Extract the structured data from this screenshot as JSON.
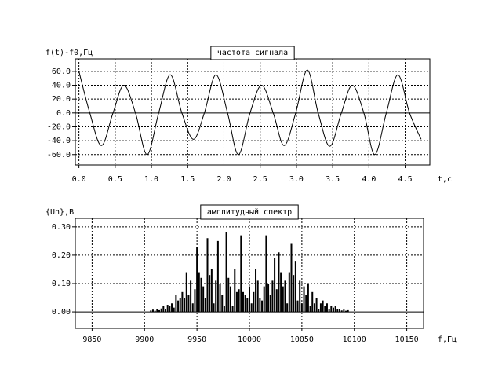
{
  "chart_data": [
    {
      "type": "line",
      "title": "частота сигнала",
      "ylabel": "f(t)-f0,Гц",
      "xlabel": "t,c",
      "x": [
        0.0,
        0.15,
        0.31,
        0.47,
        0.62,
        0.78,
        0.94,
        1.1,
        1.26,
        1.42,
        1.58,
        1.73,
        1.89,
        2.05,
        2.2,
        2.36,
        2.52,
        2.68,
        2.83,
        2.99,
        3.15,
        3.3,
        3.46,
        3.62,
        3.77,
        3.93,
        4.08,
        4.24,
        4.4,
        4.56,
        4.72
      ],
      "values": [
        60,
        0,
        -47,
        0,
        40,
        0,
        -60,
        0,
        55,
        0,
        -38,
        0,
        55,
        0,
        -60,
        0,
        40,
        0,
        -47,
        0,
        62,
        0,
        -48,
        0,
        40,
        0,
        -60,
        0,
        55,
        0,
        -38
      ],
      "color": "#000000",
      "xlim": [
        -0.05,
        4.84
      ],
      "ylim": [
        -75,
        78
      ],
      "xticks": [
        {
          "value": 0,
          "label": "0.0"
        },
        {
          "value": 0.5,
          "label": "0.5"
        },
        {
          "value": 1,
          "label": "1.0"
        },
        {
          "value": 1.5,
          "label": "1.5"
        },
        {
          "value": 2,
          "label": "2.0"
        },
        {
          "value": 2.5,
          "label": "2.5"
        },
        {
          "value": 3,
          "label": "3.0"
        },
        {
          "value": 3.5,
          "label": "3.5"
        },
        {
          "value": 4,
          "label": "4.0"
        },
        {
          "value": 4.5,
          "label": "4.5"
        }
      ],
      "yticks": [
        {
          "value": 60,
          "label": "60.0"
        },
        {
          "value": 40,
          "label": "40.0"
        },
        {
          "value": 20,
          "label": "20.0"
        },
        {
          "value": 0,
          "label": "0.0"
        },
        {
          "value": -20,
          "label": "-20.0"
        },
        {
          "value": -40,
          "label": "-40.0"
        },
        {
          "value": -60,
          "label": "-60.0"
        }
      ],
      "grid": true
    },
    {
      "type": "bar",
      "title": "амплитудный спектр",
      "ylabel": "{Un},B",
      "xlabel": "f,Гц",
      "x": [
        9906,
        9908,
        9910,
        9912,
        9914,
        9916,
        9918,
        9920,
        9922,
        9924,
        9926,
        9928,
        9930,
        9932,
        9934,
        9936,
        9938,
        9940,
        9942,
        9944,
        9946,
        9948,
        9950,
        9952,
        9954,
        9956,
        9958,
        9960,
        9962,
        9964,
        9966,
        9968,
        9970,
        9972,
        9974,
        9976,
        9978,
        9980,
        9982,
        9984,
        9986,
        9988,
        9990,
        9992,
        9994,
        9996,
        9998,
        10000,
        10002,
        10004,
        10006,
        10008,
        10010,
        10012,
        10014,
        10016,
        10018,
        10020,
        10022,
        10024,
        10026,
        10028,
        10030,
        10032,
        10034,
        10036,
        10038,
        10040,
        10042,
        10044,
        10046,
        10048,
        10050,
        10052,
        10054,
        10056,
        10058,
        10060,
        10062,
        10064,
        10066,
        10068,
        10070,
        10072,
        10074,
        10076,
        10078,
        10080,
        10082,
        10084,
        10086,
        10088,
        10090,
        10092,
        10094
      ],
      "values": [
        0.005,
        0.008,
        0.004,
        0.01,
        0.006,
        0.012,
        0.02,
        0.01,
        0.025,
        0.02,
        0.03,
        0.015,
        0.06,
        0.04,
        0.05,
        0.07,
        0.05,
        0.14,
        0.06,
        0.11,
        0.03,
        0.08,
        0.23,
        0.14,
        0.12,
        0.09,
        0.05,
        0.26,
        0.13,
        0.15,
        0.03,
        0.11,
        0.25,
        0.1,
        0.06,
        0.02,
        0.28,
        0.12,
        0.09,
        0.02,
        0.15,
        0.07,
        0.08,
        0.27,
        0.07,
        0.06,
        0.05,
        0.09,
        0.03,
        0.07,
        0.15,
        0.11,
        0.05,
        0.04,
        0.09,
        0.27,
        0.1,
        0.06,
        0.11,
        0.19,
        0.08,
        0.21,
        0.14,
        0.09,
        0.11,
        0.03,
        0.14,
        0.24,
        0.13,
        0.18,
        0.04,
        0.11,
        0.03,
        0.09,
        0.06,
        0.1,
        0.02,
        0.07,
        0.03,
        0.05,
        0.01,
        0.03,
        0.04,
        0.02,
        0.03,
        0.01,
        0.02,
        0.015,
        0.02,
        0.01,
        0.01,
        0.005,
        0.008,
        0.004,
        0.006
      ],
      "color": "#000000",
      "xlim": [
        9834,
        10166
      ],
      "ylim": [
        -0.058,
        0.33
      ],
      "xticks": [
        9850,
        9900,
        9950,
        10000,
        10050,
        10100,
        10150
      ],
      "yticks": [
        {
          "value": 0.3,
          "label": "0.30"
        },
        {
          "value": 0.2,
          "label": "0.20"
        },
        {
          "value": 0.1,
          "label": "0.10"
        },
        {
          "value": 0,
          "label": "0.00"
        }
      ],
      "grid": true
    }
  ]
}
